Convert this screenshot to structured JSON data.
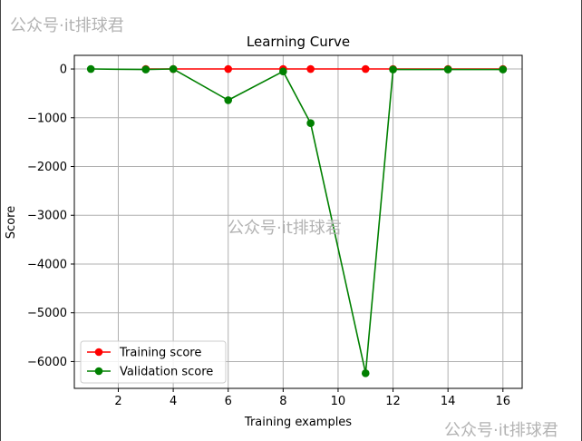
{
  "watermarks": [
    "公众号·it排球君",
    "公众号·it排球君",
    "公众号·it排球君"
  ],
  "chart_data": {
    "type": "line",
    "title": "Learning Curve",
    "xlabel": "Training examples",
    "ylabel": "Score",
    "xlim": [
      0.4,
      16.7
    ],
    "ylim": [
      -6550,
      280
    ],
    "xticks": [
      2,
      4,
      6,
      8,
      10,
      12,
      14,
      16
    ],
    "yticks": [
      0,
      -1000,
      -2000,
      -3000,
      -4000,
      -5000,
      -6000
    ],
    "grid": true,
    "legend_position": "lower-left",
    "series": [
      {
        "name": "Training score",
        "color": "#ff0000",
        "x": [
          3,
          4,
          6,
          8,
          9,
          11,
          12,
          14,
          16
        ],
        "y": [
          0,
          0,
          0,
          0,
          0,
          0,
          0,
          0,
          0
        ]
      },
      {
        "name": "Validation score",
        "color": "#008000",
        "x": [
          1,
          3,
          4,
          6,
          8,
          9,
          11,
          12,
          14,
          16
        ],
        "y": [
          0,
          -10,
          0,
          -640,
          -50,
          -1110,
          -6240,
          -10,
          -10,
          -10
        ]
      }
    ]
  }
}
